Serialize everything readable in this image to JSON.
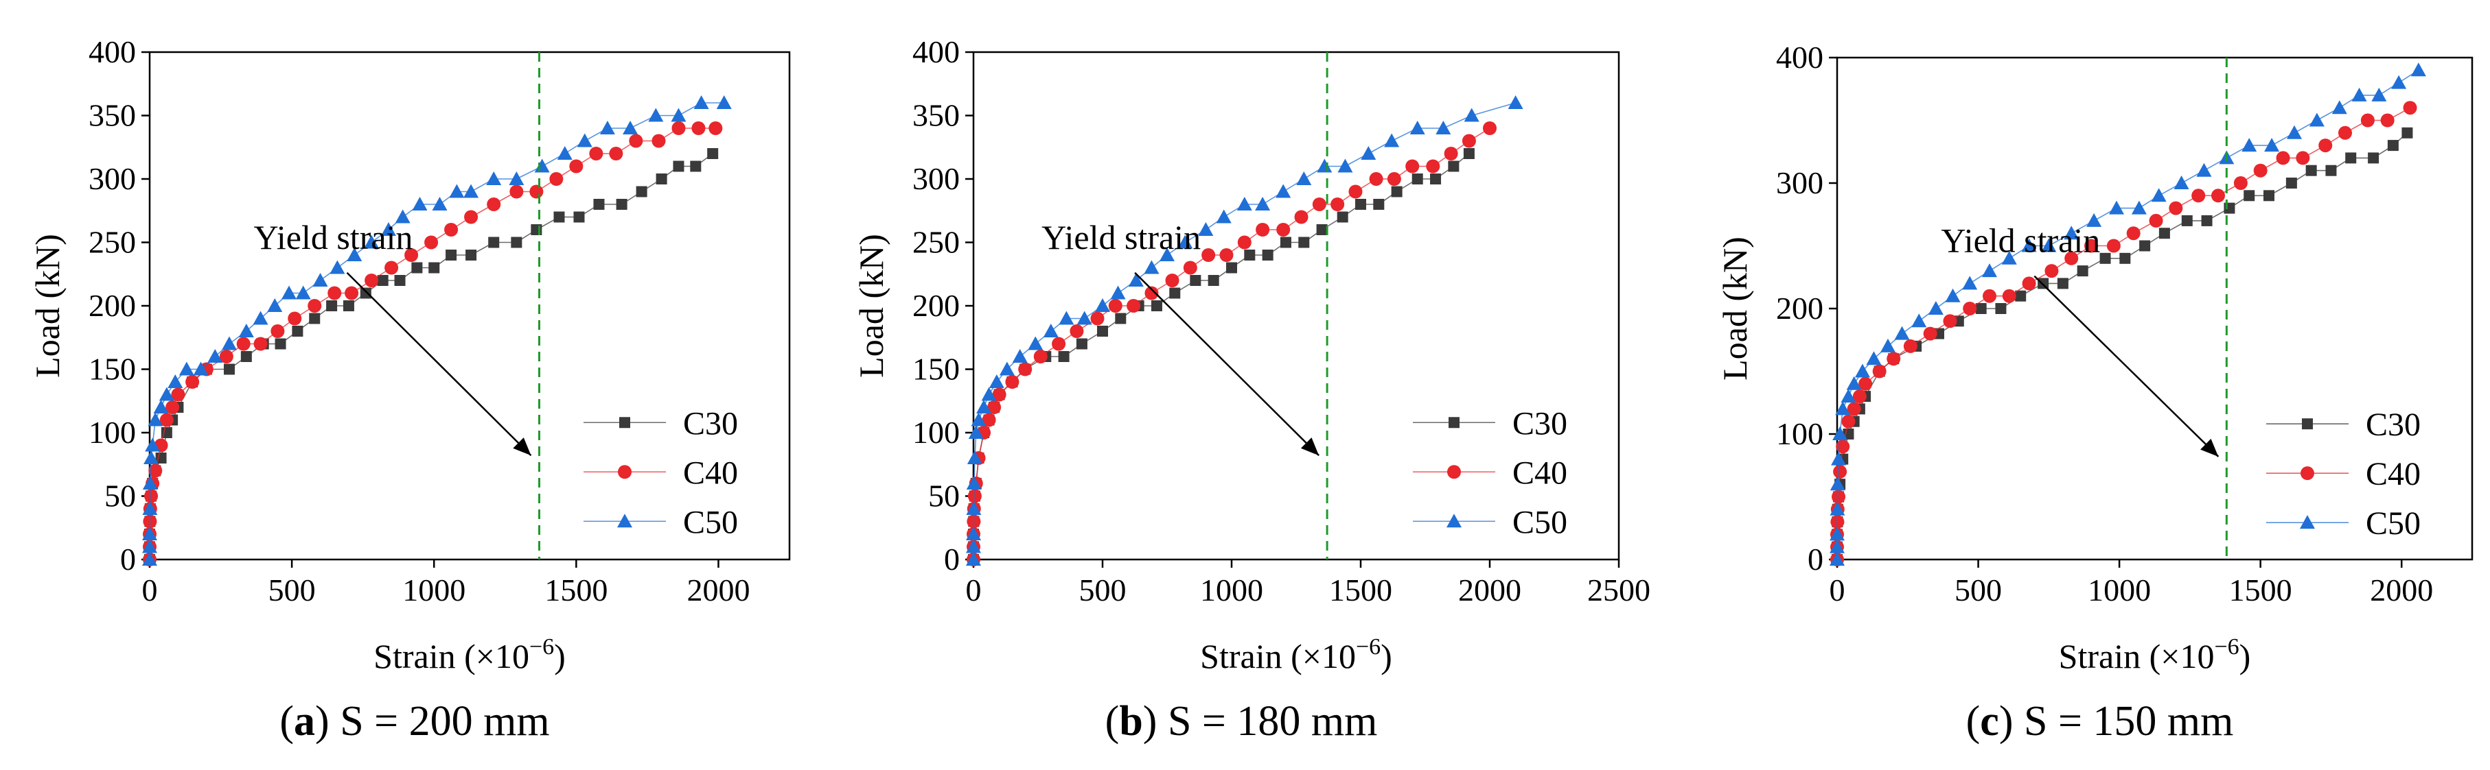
{
  "chart_data": [
    {
      "type": "line",
      "caption_letter": "a",
      "caption_text": " S = 200 mm",
      "xlabel": "Strain (×10",
      "xlabel_exp": "−6",
      "xlabel_end": ")",
      "ylabel": "Load (kN)",
      "xlim": [
        0,
        2250
      ],
      "ylim": [
        0,
        400
      ],
      "xticks": [
        0,
        500,
        1000,
        1500,
        2000
      ],
      "yticks": [
        0,
        50,
        100,
        150,
        200,
        250,
        300,
        350,
        400
      ],
      "yield_strain": 1370,
      "annotation": "Yield strain",
      "legend_position": "lower-right",
      "series": [
        {
          "name": "C30",
          "marker": "square",
          "color": "#3a3a3a",
          "x": [
            0,
            0,
            0,
            1,
            2,
            5,
            10,
            20,
            40,
            60,
            80,
            100,
            150,
            200,
            280,
            340,
            400,
            460,
            520,
            580,
            640,
            700,
            760,
            820,
            880,
            940,
            1000,
            1060,
            1130,
            1210,
            1290,
            1360,
            1440,
            1510,
            1580,
            1660,
            1730,
            1800,
            1860,
            1920,
            1980
          ],
          "y": [
            0,
            10,
            20,
            30,
            40,
            50,
            60,
            70,
            80,
            100,
            110,
            120,
            140,
            150,
            150,
            160,
            170,
            170,
            180,
            190,
            200,
            200,
            210,
            220,
            220,
            230,
            230,
            240,
            240,
            250,
            250,
            260,
            270,
            270,
            280,
            280,
            290,
            300,
            310,
            310,
            320
          ]
        },
        {
          "name": "C40",
          "marker": "circle",
          "color": "#e8262b",
          "x": [
            0,
            0,
            0,
            1,
            2,
            5,
            10,
            20,
            40,
            60,
            80,
            100,
            150,
            200,
            270,
            330,
            390,
            450,
            510,
            580,
            650,
            710,
            780,
            850,
            920,
            990,
            1060,
            1130,
            1210,
            1290,
            1360,
            1430,
            1500,
            1570,
            1640,
            1710,
            1790,
            1860,
            1930,
            1990
          ],
          "y": [
            0,
            10,
            20,
            30,
            40,
            50,
            60,
            70,
            90,
            110,
            120,
            130,
            140,
            150,
            160,
            170,
            170,
            180,
            190,
            200,
            210,
            210,
            220,
            230,
            240,
            250,
            260,
            270,
            280,
            290,
            290,
            300,
            310,
            320,
            320,
            330,
            330,
            340,
            340,
            340
          ]
        },
        {
          "name": "C50",
          "marker": "triangle",
          "color": "#1f6fd6",
          "x": [
            0,
            0,
            0,
            1,
            2,
            5,
            10,
            20,
            40,
            60,
            90,
            130,
            180,
            230,
            280,
            340,
            390,
            440,
            490,
            540,
            600,
            660,
            720,
            780,
            840,
            890,
            950,
            1020,
            1080,
            1130,
            1210,
            1290,
            1380,
            1460,
            1530,
            1610,
            1690,
            1780,
            1860,
            1940,
            2020
          ],
          "y": [
            0,
            10,
            20,
            40,
            60,
            80,
            90,
            110,
            120,
            130,
            140,
            150,
            150,
            160,
            170,
            180,
            190,
            200,
            210,
            210,
            220,
            230,
            240,
            250,
            260,
            270,
            280,
            280,
            290,
            290,
            300,
            300,
            310,
            320,
            330,
            340,
            340,
            350,
            350,
            360,
            360
          ]
        }
      ]
    },
    {
      "type": "line",
      "caption_letter": "b",
      "caption_text": " S = 180 mm",
      "xlabel": "Strain (×10",
      "xlabel_exp": "−6",
      "xlabel_end": ")",
      "ylabel": "Load (kN)",
      "xlim": [
        0,
        2500
      ],
      "ylim": [
        0,
        400
      ],
      "xticks": [
        0,
        500,
        1000,
        1500,
        2000,
        2500
      ],
      "yticks": [
        0,
        50,
        100,
        150,
        200,
        250,
        300,
        350,
        400
      ],
      "yield_strain": 1370,
      "annotation": "Yield strain",
      "legend_position": "lower-right",
      "series": [
        {
          "name": "C30",
          "marker": "square",
          "color": "#3a3a3a",
          "x": [
            0,
            0,
            0,
            1,
            2,
            5,
            10,
            20,
            40,
            60,
            80,
            100,
            150,
            200,
            280,
            350,
            420,
            500,
            570,
            640,
            710,
            780,
            860,
            930,
            1000,
            1070,
            1140,
            1210,
            1280,
            1350,
            1430,
            1500,
            1570,
            1640,
            1720,
            1790,
            1860,
            1920
          ],
          "y": [
            0,
            10,
            20,
            30,
            40,
            50,
            60,
            80,
            100,
            110,
            120,
            130,
            140,
            150,
            160,
            160,
            170,
            180,
            190,
            200,
            200,
            210,
            220,
            220,
            230,
            240,
            240,
            250,
            250,
            260,
            270,
            280,
            280,
            290,
            300,
            300,
            310,
            320
          ]
        },
        {
          "name": "C40",
          "marker": "circle",
          "color": "#e8262b",
          "x": [
            0,
            0,
            0,
            1,
            2,
            5,
            10,
            20,
            40,
            60,
            80,
            100,
            150,
            200,
            260,
            330,
            400,
            480,
            550,
            620,
            690,
            770,
            840,
            910,
            980,
            1050,
            1120,
            1200,
            1270,
            1340,
            1410,
            1480,
            1560,
            1630,
            1700,
            1780,
            1850,
            1920,
            2000
          ],
          "y": [
            0,
            10,
            20,
            30,
            40,
            50,
            60,
            80,
            100,
            110,
            120,
            130,
            140,
            150,
            160,
            170,
            180,
            190,
            200,
            200,
            210,
            220,
            230,
            240,
            240,
            250,
            260,
            260,
            270,
            280,
            280,
            290,
            300,
            300,
            310,
            310,
            320,
            330,
            340
          ]
        },
        {
          "name": "C50",
          "marker": "triangle",
          "color": "#1f6fd6",
          "x": [
            0,
            0,
            0,
            1,
            2,
            5,
            10,
            20,
            40,
            60,
            90,
            130,
            180,
            240,
            300,
            360,
            430,
            500,
            560,
            630,
            690,
            750,
            820,
            900,
            970,
            1050,
            1120,
            1200,
            1280,
            1360,
            1440,
            1530,
            1620,
            1720,
            1820,
            1930,
            2100
          ],
          "y": [
            0,
            10,
            20,
            40,
            60,
            80,
            100,
            110,
            120,
            130,
            140,
            150,
            160,
            170,
            180,
            190,
            190,
            200,
            210,
            220,
            230,
            240,
            250,
            260,
            270,
            280,
            280,
            290,
            300,
            310,
            310,
            320,
            330,
            340,
            340,
            350,
            360
          ]
        }
      ]
    },
    {
      "type": "line",
      "caption_letter": "c",
      "caption_text": " S = 150 mm",
      "xlabel": "Strain (×10",
      "xlabel_exp": "−6",
      "xlabel_end": ")",
      "ylabel": "Load (kN)",
      "xlim": [
        0,
        2250
      ],
      "ylim": [
        0,
        400
      ],
      "xticks": [
        0,
        500,
        1000,
        1500,
        2000
      ],
      "yticks": [
        0,
        100,
        200,
        300,
        400
      ],
      "yield_strain": 1380,
      "annotation": "Yield strain",
      "legend_position": "lower-right",
      "series": [
        {
          "name": "C30",
          "marker": "square",
          "color": "#3a3a3a",
          "x": [
            0,
            0,
            0,
            1,
            2,
            5,
            10,
            20,
            40,
            60,
            80,
            100,
            150,
            200,
            280,
            360,
            430,
            510,
            580,
            650,
            730,
            800,
            870,
            950,
            1020,
            1090,
            1160,
            1240,
            1310,
            1390,
            1460,
            1530,
            1610,
            1680,
            1750,
            1820,
            1900,
            1970,
            2020
          ],
          "y": [
            0,
            10,
            20,
            30,
            40,
            50,
            60,
            80,
            100,
            110,
            120,
            130,
            150,
            160,
            170,
            180,
            190,
            200,
            200,
            210,
            220,
            220,
            230,
            240,
            240,
            250,
            260,
            270,
            270,
            280,
            290,
            290,
            300,
            310,
            310,
            320,
            320,
            330,
            340
          ]
        },
        {
          "name": "C40",
          "marker": "circle",
          "color": "#e8262b",
          "x": [
            0,
            0,
            0,
            1,
            2,
            5,
            10,
            20,
            40,
            60,
            80,
            100,
            150,
            200,
            260,
            330,
            400,
            470,
            540,
            610,
            680,
            760,
            830,
            900,
            980,
            1050,
            1130,
            1200,
            1280,
            1350,
            1430,
            1500,
            1580,
            1650,
            1730,
            1800,
            1880,
            1950,
            2030
          ],
          "y": [
            0,
            10,
            20,
            30,
            40,
            50,
            70,
            90,
            110,
            120,
            130,
            140,
            150,
            160,
            170,
            180,
            190,
            200,
            210,
            210,
            220,
            230,
            240,
            250,
            250,
            260,
            270,
            280,
            290,
            290,
            300,
            310,
            320,
            320,
            330,
            340,
            350,
            350,
            360
          ]
        },
        {
          "name": "C50",
          "marker": "triangle",
          "color": "#1f6fd6",
          "x": [
            0,
            0,
            0,
            1,
            2,
            5,
            10,
            20,
            40,
            60,
            90,
            130,
            180,
            230,
            290,
            350,
            410,
            470,
            540,
            610,
            680,
            750,
            830,
            910,
            990,
            1070,
            1140,
            1220,
            1300,
            1380,
            1460,
            1540,
            1620,
            1700,
            1780,
            1850,
            1920,
            1990,
            2060
          ],
          "y": [
            0,
            10,
            20,
            40,
            60,
            80,
            100,
            120,
            130,
            140,
            150,
            160,
            170,
            180,
            190,
            200,
            210,
            220,
            230,
            240,
            250,
            250,
            260,
            270,
            280,
            280,
            290,
            300,
            310,
            320,
            330,
            330,
            340,
            350,
            360,
            370,
            370,
            380,
            390
          ]
        }
      ]
    }
  ]
}
